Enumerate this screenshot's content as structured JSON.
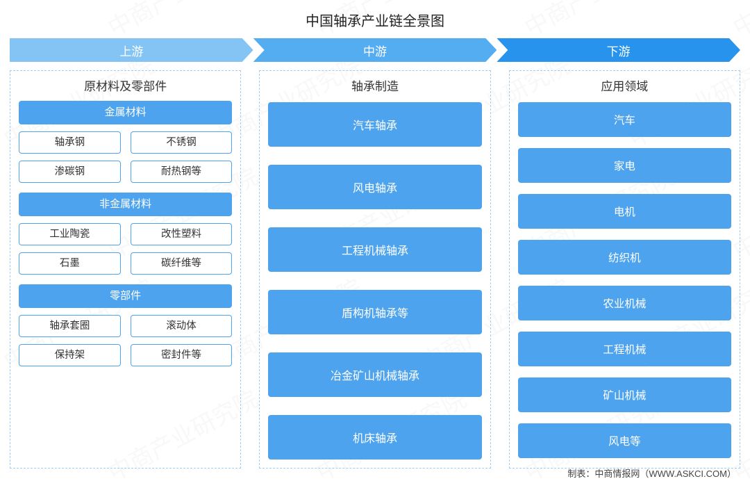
{
  "title": "中国轴承产业链全景图",
  "watermark_text": "中商产业研究院",
  "footer": "制表：中商情报网（WWW.ASKCI.COM）",
  "colors": {
    "stage1": "#84c4f5",
    "stage2": "#54acf1",
    "stage3": "#2793ec",
    "box_fill": "#4da3ee",
    "box_border": "#4da3ee",
    "dashed_border": "#9fcdf3",
    "title_text": "#222222",
    "chip_text": "#333333",
    "background": "#ffffff"
  },
  "stages": [
    {
      "label": "上游"
    },
    {
      "label": "中游"
    },
    {
      "label": "下游"
    }
  ],
  "upstream": {
    "title": "原材料及零部件",
    "groups": [
      {
        "header": "金属材料",
        "rows": [
          [
            "轴承钢",
            "不锈钢"
          ],
          [
            "渗碳钢",
            "耐热钢等"
          ]
        ]
      },
      {
        "header": "非金属材料",
        "rows": [
          [
            "工业陶瓷",
            "改性塑料"
          ],
          [
            "石墨",
            "碳纤维等"
          ]
        ]
      },
      {
        "header": "零部件",
        "rows": [
          [
            "轴承套圈",
            "滚动体"
          ],
          [
            "保持架",
            "密封件等"
          ]
        ]
      }
    ]
  },
  "midstream": {
    "title": "轴承制造",
    "items": [
      "汽车轴承",
      "风电轴承",
      "工程机械轴承",
      "盾构机轴承等",
      "冶金矿山机械轴承",
      "机床轴承"
    ]
  },
  "downstream": {
    "title": "应用领域",
    "items": [
      "汽车",
      "家电",
      "电机",
      "纺织机",
      "农业机械",
      "工程机械",
      "矿山机械",
      "风电等"
    ]
  }
}
